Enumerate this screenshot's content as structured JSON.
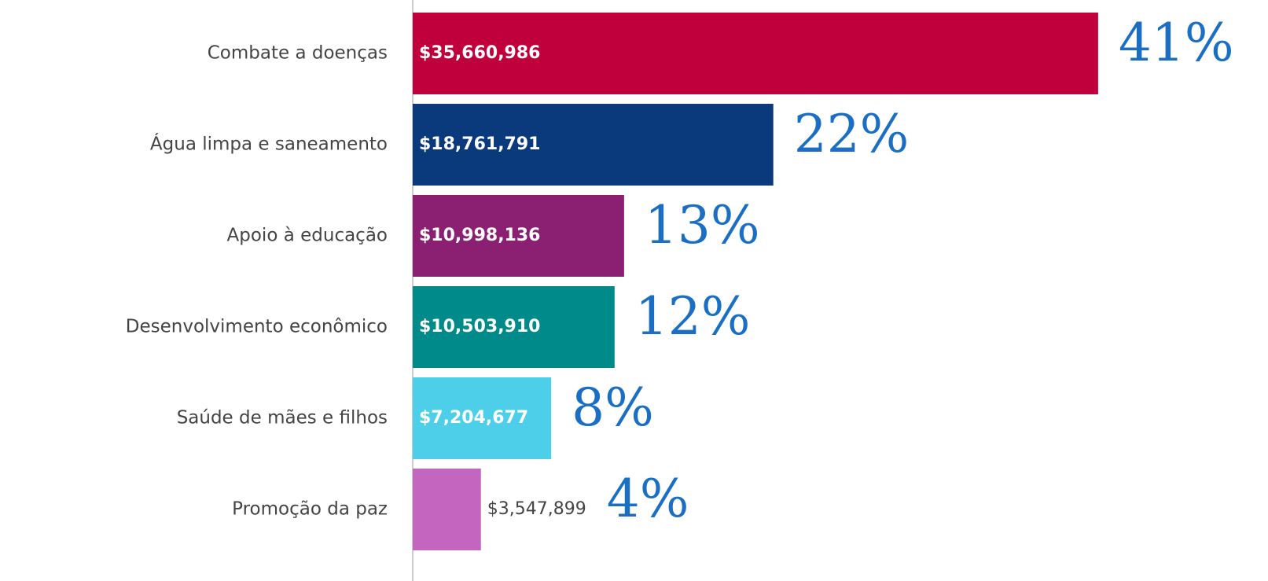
{
  "chart_data": {
    "type": "hbar",
    "categories": [
      "Combate a doenças",
      "Água limpa e saneamento",
      "Apoio à educação",
      "Desenvolvimento econômico",
      "Saúde de mães e filhos",
      "Promoção da paz"
    ],
    "values": [
      35660986,
      18761791,
      10998136,
      10503910,
      7204677,
      3547899
    ],
    "value_labels": [
      "$35,660,986",
      "$18,761,791",
      "$10,998,136",
      "$10,503,910",
      "$7,204,677",
      "$3,547,899"
    ],
    "colors": [
      "#c0003c",
      "#0b3a7c",
      "#8b1f72",
      "#008a8a",
      "#4dcfea",
      "#c465bf"
    ],
    "shares": {
      "values": [
        41,
        22,
        13,
        12,
        8,
        4
      ],
      "value_labels": [
        "41%",
        "22%",
        "13%",
        "12%",
        "8%",
        "4%"
      ]
    },
    "xlim": [
      0,
      44500000
    ]
  }
}
